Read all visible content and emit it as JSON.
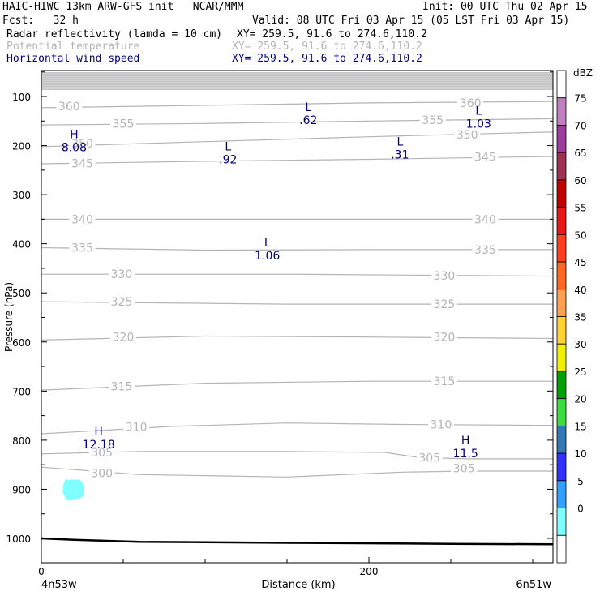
{
  "header": {
    "title": "HAIC-HIWC 13km ARW-GFS init   NCAR/MMM",
    "init": "Init: 00 UTC Thu 02 Apr 15",
    "fcst": "Fcst:   32 h",
    "valid": "Valid: 08 UTC Fri 03 Apr 15 (05 LST Fri 03 Apr 15)",
    "fields": [
      {
        "name": "Radar reflectivity (lamda = 10 cm)",
        "xy": "XY= 259.5, 91.6 to 274.6,110.2",
        "color": "#000000"
      },
      {
        "name": "Potential temperature",
        "xy": "XY= 259.5, 91.6 to 274.6,110.2",
        "color": "#b4b4b4"
      },
      {
        "name": "Horizontal wind speed",
        "xy": "XY= 259.5, 91.6 to 274.6,110.2",
        "color": "#00007d"
      }
    ]
  },
  "chart_data": {
    "type": "cross-section",
    "xlabel": "Distance (km)",
    "ylabel": "Pressure (hPa)",
    "x_ticks": [
      0,
      200
    ],
    "y_ticks": [
      100,
      200,
      300,
      400,
      500,
      600,
      700,
      800,
      900,
      1000
    ],
    "xlim": [
      0,
      315
    ],
    "ylim": [
      1045,
      50
    ],
    "x_endpoints": {
      "left": "4n53w",
      "right": "6n51w"
    },
    "theta_contours": [
      {
        "label": "300",
        "points": [
          [
            0,
            855
          ],
          [
            60,
            870
          ],
          [
            150,
            875
          ],
          [
            220,
            865
          ],
          [
            260,
            863
          ],
          [
            315,
            863
          ]
        ],
        "labels_at": [
          [
            37,
            867
          ]
        ]
      },
      {
        "label": "305",
        "points": [
          [
            0,
            828
          ],
          [
            60,
            823
          ],
          [
            150,
            823
          ],
          [
            210,
            825
          ],
          [
            230,
            835
          ],
          [
            260,
            838
          ],
          [
            315,
            838
          ]
        ],
        "labels_at": [
          [
            37,
            825
          ],
          [
            237,
            836
          ],
          [
            258,
            857
          ]
        ]
      },
      {
        "label": "310",
        "points": [
          [
            0,
            787
          ],
          [
            80,
            772
          ],
          [
            150,
            765
          ],
          [
            220,
            768
          ],
          [
            315,
            770
          ]
        ],
        "labels_at": [
          [
            58,
            773
          ],
          [
            244,
            768
          ]
        ]
      },
      {
        "label": "315",
        "points": [
          [
            0,
            698
          ],
          [
            100,
            684
          ],
          [
            200,
            680
          ],
          [
            315,
            680
          ]
        ],
        "labels_at": [
          [
            49,
            690
          ],
          [
            246,
            680
          ]
        ]
      },
      {
        "label": "320",
        "points": [
          [
            0,
            596
          ],
          [
            100,
            588
          ],
          [
            200,
            590
          ],
          [
            315,
            593
          ]
        ],
        "labels_at": [
          [
            50,
            590
          ],
          [
            246,
            590
          ]
        ]
      },
      {
        "label": "325",
        "points": [
          [
            0,
            518
          ],
          [
            150,
            523
          ],
          [
            315,
            523
          ]
        ],
        "labels_at": [
          [
            49,
            518
          ],
          [
            246,
            523
          ]
        ]
      },
      {
        "label": "330",
        "points": [
          [
            0,
            462
          ],
          [
            150,
            462
          ],
          [
            315,
            466
          ]
        ],
        "labels_at": [
          [
            49,
            462
          ],
          [
            246,
            465
          ]
        ]
      },
      {
        "label": "335",
        "points": [
          [
            0,
            408
          ],
          [
            100,
            413
          ],
          [
            200,
            412
          ],
          [
            315,
            412
          ]
        ],
        "labels_at": [
          [
            25,
            408
          ],
          [
            271,
            412
          ]
        ]
      },
      {
        "label": "340",
        "points": [
          [
            0,
            350
          ],
          [
            100,
            350
          ],
          [
            200,
            350
          ],
          [
            315,
            350
          ]
        ],
        "labels_at": [
          [
            25,
            350
          ],
          [
            271,
            350
          ]
        ]
      },
      {
        "label": "345",
        "points": [
          [
            0,
            237
          ],
          [
            100,
            232
          ],
          [
            200,
            228
          ],
          [
            315,
            222
          ]
        ],
        "labels_at": [
          [
            25,
            236
          ],
          [
            271,
            223
          ]
        ]
      },
      {
        "label": "350",
        "points": [
          [
            0,
            202
          ],
          [
            100,
            192
          ],
          [
            200,
            182
          ],
          [
            315,
            172
          ]
        ],
        "labels_at": [
          [
            25,
            196
          ],
          [
            260,
            178
          ]
        ]
      },
      {
        "label": "355",
        "points": [
          [
            0,
            158
          ],
          [
            100,
            155
          ],
          [
            200,
            150
          ],
          [
            315,
            145
          ]
        ],
        "labels_at": [
          [
            50,
            155
          ],
          [
            239,
            148
          ]
        ]
      },
      {
        "label": "360",
        "points": [
          [
            0,
            123
          ],
          [
            100,
            118
          ],
          [
            200,
            113
          ],
          [
            315,
            110
          ]
        ],
        "labels_at": [
          [
            17,
            120
          ],
          [
            262,
            113
          ]
        ]
      }
    ],
    "stratosphere_lines_hpa": [
      52,
      55,
      58,
      61,
      64,
      67,
      70,
      73,
      76,
      79,
      82
    ],
    "wind_extrema": [
      {
        "type": "H",
        "value": "8.08",
        "x": 20,
        "p": 195
      },
      {
        "type": "L",
        "value": ".92",
        "x": 114,
        "p": 220
      },
      {
        "type": "L",
        "value": ".62",
        "x": 163,
        "p": 140
      },
      {
        "type": "L",
        "value": ".31",
        "x": 219,
        "p": 210
      },
      {
        "type": "L",
        "value": "1.03",
        "x": 267,
        "p": 147
      },
      {
        "type": "L",
        "value": "1.06",
        "x": 138,
        "p": 415
      },
      {
        "type": "H",
        "value": "12.18",
        "x": 35,
        "p": 800
      },
      {
        "type": "H",
        "value": "11.5",
        "x": 259,
        "p": 818
      }
    ],
    "terrain": [
      [
        0,
        1000
      ],
      [
        20,
        1003
      ],
      [
        60,
        1007
      ],
      [
        150,
        1009
      ],
      [
        250,
        1011
      ],
      [
        315,
        1012
      ]
    ],
    "reflectivity_blobs": [
      {
        "dbz": 5,
        "color": "#7fffff",
        "x": 20,
        "p": 900
      }
    ],
    "colorbar": {
      "unit": "dBZ",
      "levels": [
        "75",
        "70",
        "65",
        "60",
        "55",
        "50",
        "45",
        "40",
        "35",
        "30",
        "25",
        "20",
        "15",
        "10",
        "5",
        "0"
      ],
      "colors": [
        "#ffffff",
        "#c080c0",
        "#9c3c9c",
        "#a03050",
        "#c00000",
        "#e81818",
        "#ff4020",
        "#ff6820",
        "#ffa050",
        "#ffd232",
        "#f0f000",
        "#00a000",
        "#3cdc3c",
        "#3278b4",
        "#3232ff",
        "#32a0ff",
        "#7fffff",
        "#ffffff"
      ]
    }
  }
}
